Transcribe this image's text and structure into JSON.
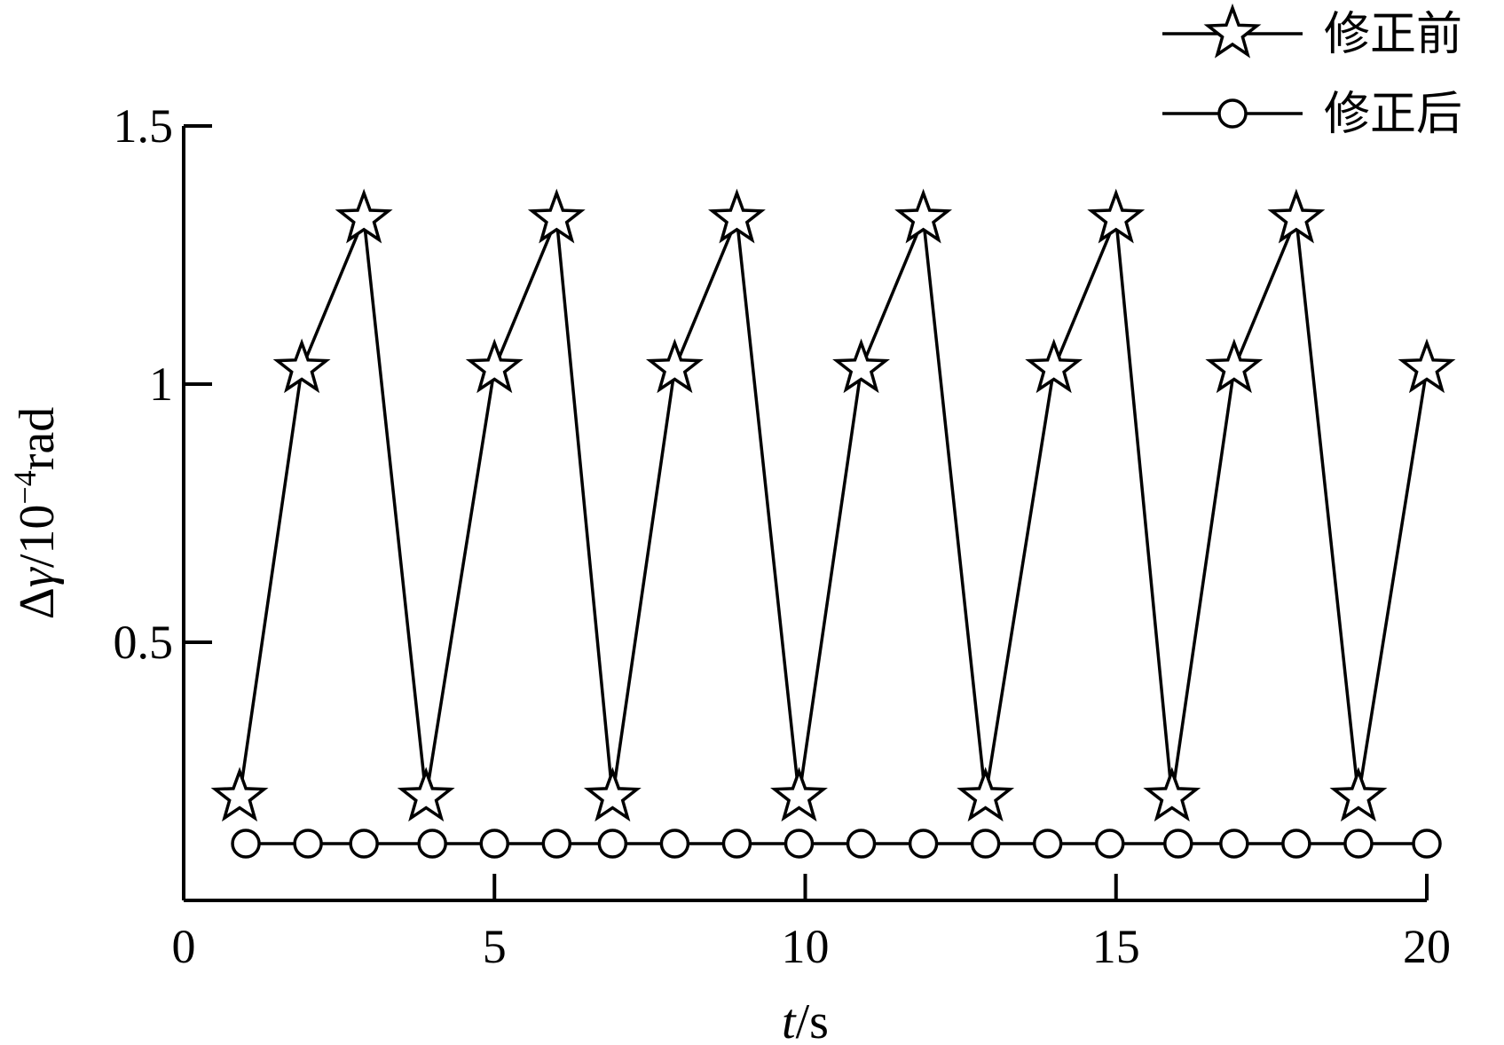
{
  "chart_data": {
    "type": "line",
    "xlabel": "t/s",
    "xlabel_italic": "t",
    "xlabel_rest": "/s",
    "ylabel": "Δγ/10⁻⁴rad",
    "ylabel_parts": {
      "delta": "Δ",
      "gamma": "γ",
      "slash": "/10",
      "exp": "−4",
      "unit": "rad"
    },
    "xlim": [
      0,
      20
    ],
    "ylim": [
      0,
      1.5
    ],
    "xticks": [
      0,
      5,
      10,
      15,
      20
    ],
    "xtick_labels": [
      "0",
      "5",
      "10",
      "15",
      "20"
    ],
    "yticks": [
      0.5,
      1,
      1.5
    ],
    "ytick_labels": [
      "0.5",
      "1",
      "1.5"
    ],
    "grid": false,
    "legend_position": "top-right",
    "series": [
      {
        "name": "修正前",
        "marker": "star",
        "x": [
          0.9,
          1.9,
          2.9,
          3.9,
          5.0,
          6.0,
          6.9,
          7.9,
          8.9,
          9.9,
          10.9,
          11.9,
          12.9,
          14.0,
          15.0,
          15.9,
          16.9,
          17.9,
          18.9,
          20.0
        ],
        "y": [
          0.2,
          1.03,
          1.32,
          0.2,
          1.03,
          1.32,
          0.2,
          1.03,
          1.32,
          0.2,
          1.03,
          1.32,
          0.2,
          1.03,
          1.32,
          0.2,
          1.03,
          1.32,
          0.2,
          1.03
        ]
      },
      {
        "name": "修正后",
        "marker": "circle",
        "x": [
          1.0,
          2.0,
          2.9,
          4.0,
          5.0,
          6.0,
          6.9,
          7.9,
          8.9,
          9.9,
          10.9,
          11.9,
          12.9,
          13.9,
          14.9,
          16.0,
          16.9,
          17.9,
          18.9,
          20.0
        ],
        "y": [
          0.11,
          0.11,
          0.11,
          0.11,
          0.11,
          0.11,
          0.11,
          0.11,
          0.11,
          0.11,
          0.11,
          0.11,
          0.11,
          0.11,
          0.11,
          0.11,
          0.11,
          0.11,
          0.11,
          0.11
        ]
      }
    ]
  }
}
